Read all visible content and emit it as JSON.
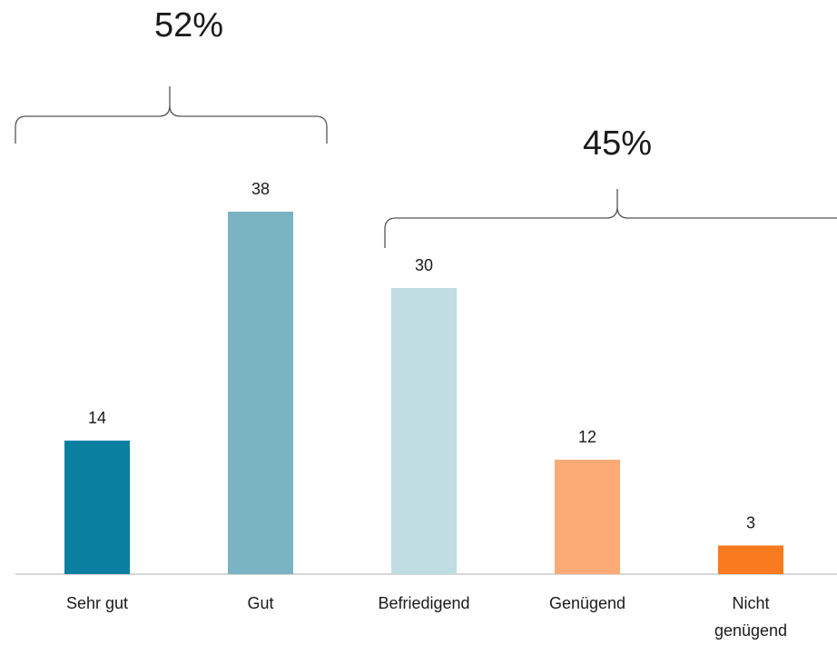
{
  "chart_data": {
    "type": "bar",
    "categories": [
      "Sehr gut",
      "Gut",
      "Befriedigend",
      "Genügend",
      "Nicht genügend"
    ],
    "values": [
      14,
      38,
      30,
      12,
      3
    ],
    "colors": [
      "#0a7fa0",
      "#7ab4c2",
      "#c0dde2",
      "#fdab76",
      "#f97b1f"
    ],
    "ylim": [
      0,
      60
    ],
    "annotations": [
      "52%",
      "45%"
    ]
  }
}
